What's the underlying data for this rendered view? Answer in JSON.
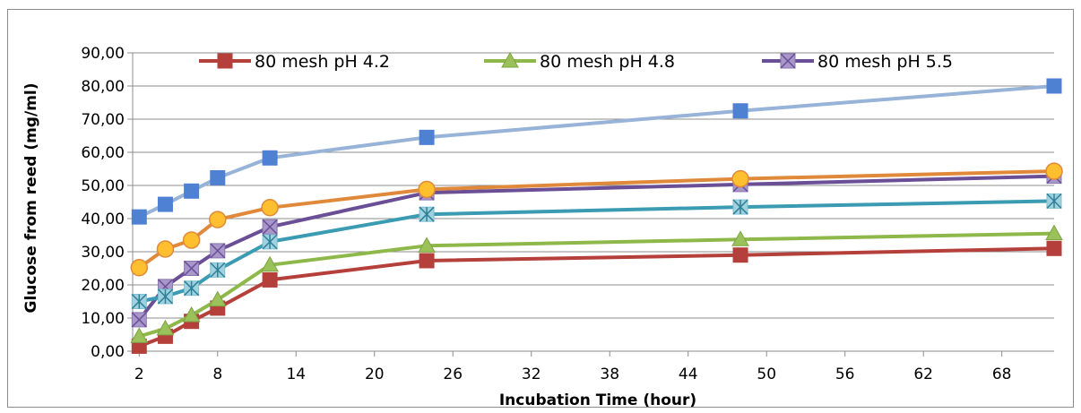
{
  "chart_data": {
    "type": "line",
    "title": "",
    "xlabel": "Incubation Time (hour)",
    "ylabel": "Glucose from reed (mg/ml)",
    "x": [
      2,
      4,
      6,
      8,
      12,
      24,
      48,
      72
    ],
    "xlim": [
      1.5,
      72
    ],
    "ylim": [
      0,
      90
    ],
    "xticks": [
      2,
      8,
      14,
      20,
      26,
      32,
      38,
      44,
      50,
      56,
      62,
      68
    ],
    "xtick_labels": [
      "2",
      "8",
      "14",
      "20",
      "26",
      "32",
      "38",
      "44",
      "50",
      "56",
      "62",
      "68"
    ],
    "yticks": [
      0,
      10,
      20,
      30,
      40,
      50,
      60,
      70,
      80,
      90
    ],
    "ytick_labels": [
      "0,00",
      "10,00",
      "20,00",
      "30,00",
      "40,00",
      "50,00",
      "60,00",
      "70,00",
      "80,00",
      "90,00"
    ],
    "grid": "horizontal",
    "legend_position": "top",
    "series": [
      {
        "name": "80 mesh pH 4.2",
        "color": "#b5403b",
        "marker": "square",
        "marker_color": "#b5403b",
        "values": [
          1.5,
          4.5,
          9,
          13,
          21.5,
          27.3,
          29,
          31
        ]
      },
      {
        "name": "80 mesh pH 4.8",
        "color": "#8fb84a",
        "marker": "triangle",
        "marker_color": "#9bc15a",
        "values": [
          4.5,
          6.8,
          10.8,
          15.5,
          26,
          31.8,
          33.7,
          35.5
        ]
      },
      {
        "name": "80 mesh pH 5.5",
        "color": "#6a4e96",
        "marker": "square-x",
        "marker_color": "#a897c9",
        "values": [
          9.5,
          19.5,
          25,
          30.3,
          37.5,
          47.8,
          50.3,
          52.8
        ]
      },
      {
        "color": "#3a9bb3",
        "marker": "asterisk-square",
        "marker_color": "#9fd1e0",
        "values": [
          15,
          16.5,
          19,
          24.5,
          33,
          41.3,
          43.5,
          45.3
        ]
      },
      {
        "color": "#e0893a",
        "marker": "circle",
        "marker_color": "#ffbf2e",
        "values": [
          25.2,
          30.8,
          33.5,
          39.7,
          43.3,
          48.8,
          52,
          54.3
        ]
      },
      {
        "color": "#97b3d8",
        "marker": "square",
        "marker_color": "#4f81d3",
        "values": [
          40.5,
          44.3,
          48.3,
          52.3,
          58.3,
          64.5,
          72.5,
          80
        ]
      }
    ]
  }
}
